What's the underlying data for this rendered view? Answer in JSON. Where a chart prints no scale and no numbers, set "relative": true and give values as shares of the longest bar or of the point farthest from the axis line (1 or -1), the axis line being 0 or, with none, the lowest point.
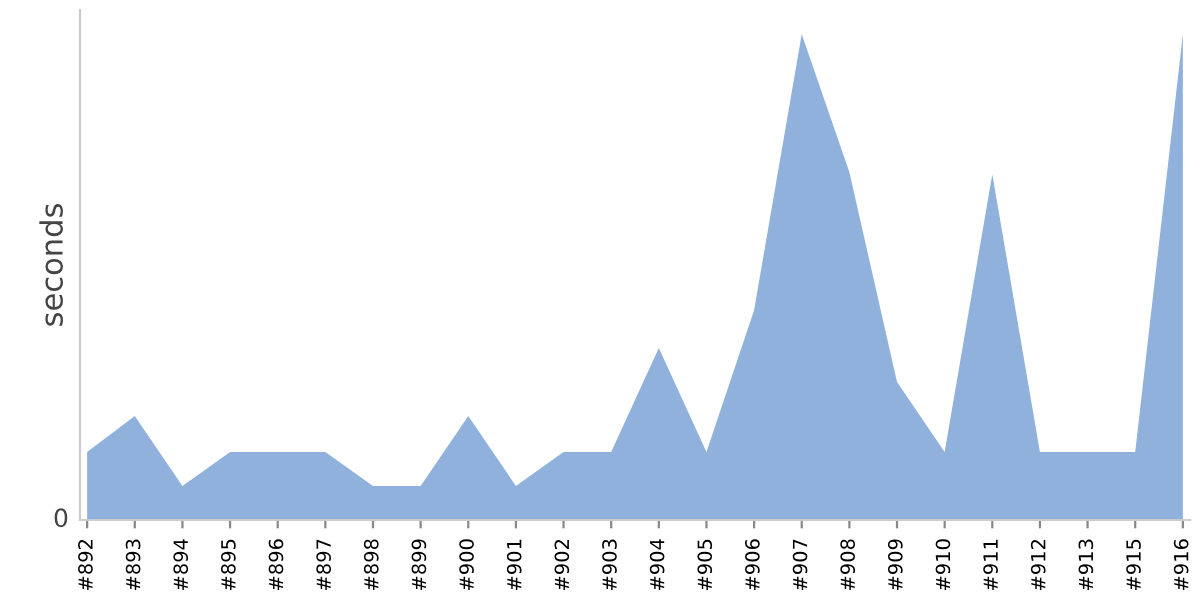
{
  "chart_data": {
    "type": "area",
    "ylabel": "seconds",
    "relative": true,
    "annotations": [
      "0"
    ],
    "grid": false,
    "legend": false,
    "categories": [
      "#892",
      "#893",
      "#894",
      "#895",
      "#896",
      "#897",
      "#898",
      "#899",
      "#900",
      "#901",
      "#902",
      "#903",
      "#904",
      "#905",
      "#906",
      "#907",
      "#908",
      "#909",
      "#910",
      "#911",
      "#912",
      "#913",
      "#915",
      "#916"
    ],
    "series": [
      {
        "color": "#8fb1dc",
        "values": [
          0.14,
          0.214,
          0.07,
          0.14,
          0.14,
          0.14,
          0.07,
          0.07,
          0.214,
          0.07,
          0.14,
          0.14,
          0.354,
          0.14,
          0.432,
          1,
          0.716,
          0.284,
          0.14,
          0.712,
          0.14,
          0.14,
          0.14,
          1
        ]
      }
    ]
  }
}
